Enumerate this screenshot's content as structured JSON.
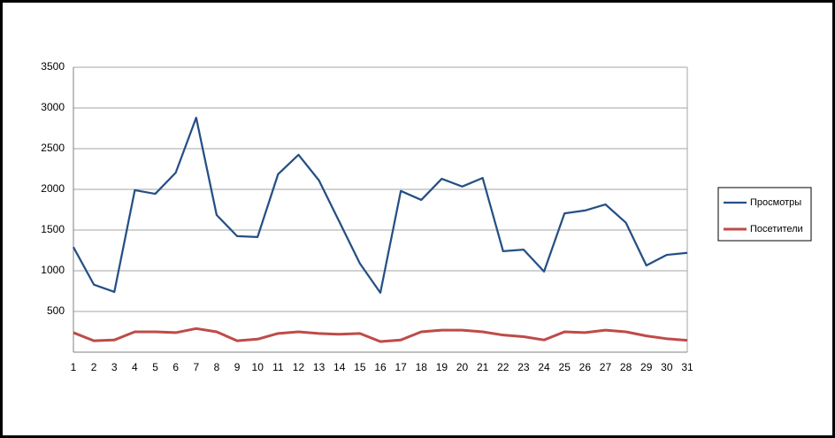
{
  "chart_data": {
    "type": "line",
    "x": [
      1,
      2,
      3,
      4,
      5,
      6,
      7,
      8,
      9,
      10,
      11,
      12,
      13,
      14,
      15,
      16,
      17,
      18,
      19,
      20,
      21,
      22,
      23,
      24,
      25,
      26,
      27,
      28,
      29,
      30,
      31
    ],
    "xlim": [
      1,
      31
    ],
    "ylim": [
      0,
      3500
    ],
    "yticks": [
      500,
      1000,
      1500,
      2000,
      2500,
      3000,
      3500
    ],
    "grid": true,
    "legend": "right",
    "series": [
      {
        "name": "Просмотры",
        "color": "#254f85",
        "values": [
          1290,
          830,
          740,
          1990,
          1945,
          2205,
          2880,
          1685,
          1425,
          1415,
          2185,
          2425,
          2110,
          1600,
          1090,
          730,
          1980,
          1870,
          2130,
          2035,
          2140,
          1240,
          1260,
          990,
          1705,
          1740,
          1815,
          1590,
          1065,
          1195,
          1220
        ]
      },
      {
        "name": "Посетители",
        "color": "#be4b48",
        "values": [
          240,
          140,
          150,
          250,
          250,
          240,
          290,
          250,
          140,
          160,
          230,
          250,
          230,
          220,
          230,
          130,
          150,
          250,
          270,
          270,
          250,
          210,
          190,
          150,
          250,
          240,
          270,
          250,
          200,
          165,
          145
        ]
      }
    ]
  }
}
